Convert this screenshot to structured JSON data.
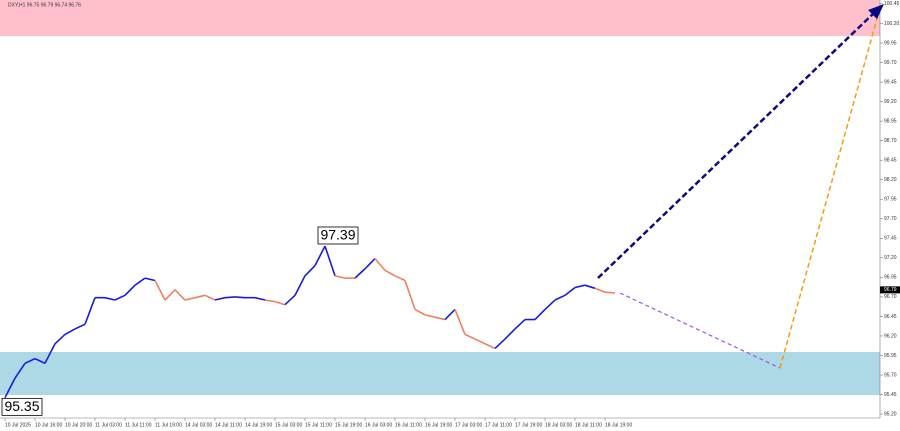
{
  "chart_data": {
    "type": "line",
    "title": "DXY,H1 96.75 96.79 96.74 96.76",
    "categories": [
      "10 Jul 2025",
      null,
      null,
      "10 Jul 16:00",
      null,
      null,
      "10 Jul 20:00",
      null,
      null,
      "11 Jul 03:00",
      null,
      null,
      "11 Jul 11:00",
      null,
      null,
      "11 Jul 19:00",
      null,
      null,
      "14 Jul 03:00",
      null,
      null,
      "14 Jul 11:00",
      null,
      null,
      "14 Jul 19:00",
      null,
      null,
      "15 Jul 03:00",
      null,
      null,
      "15 Jul 11:00",
      null,
      null,
      "15 Jul 19:00",
      null,
      null,
      "16 Jul 03:00",
      null,
      null,
      "16 Jul 11:00",
      null,
      null,
      "16 Jul 19:00",
      null,
      null,
      "17 Jul 03:00",
      null,
      null,
      "17 Jul 11:00",
      null,
      null,
      "17 Jul 19:00",
      null,
      null,
      "18 Jul 03:00",
      null,
      null,
      "18 Jul 11:00",
      null,
      null,
      "18 Jul 19:00",
      null
    ],
    "values": [
      95.41,
      95.66,
      95.85,
      95.91,
      95.85,
      96.1,
      96.22,
      96.29,
      96.35,
      96.69,
      96.69,
      96.66,
      96.72,
      96.85,
      96.94,
      96.91,
      96.66,
      96.79,
      96.66,
      96.69,
      96.72,
      96.66,
      96.69,
      96.7,
      96.69,
      96.69,
      96.66,
      96.64,
      96.6,
      96.72,
      96.97,
      97.1,
      97.35,
      96.97,
      96.94,
      96.94,
      97.06,
      97.19,
      97.04,
      96.97,
      96.91,
      96.54,
      96.47,
      96.44,
      96.41,
      96.54,
      96.22,
      96.16,
      96.1,
      96.04,
      96.16,
      96.29,
      96.41,
      96.41,
      96.54,
      96.66,
      96.72,
      96.82,
      96.85,
      96.81,
      96.76,
      96.75
    ],
    "point_colors": [
      "#1a1adb",
      "#1a1adb",
      "#1a1adb",
      "#1a1adb",
      "#1a1adb",
      "#1a1adb",
      "#1a1adb",
      "#1a1adb",
      "#1a1adb",
      "#1a1adb",
      "#1a1adb",
      "#1a1adb",
      "#1a1adb",
      "#1a1adb",
      "#1a1adb",
      "#1a1adb",
      "#ee8060",
      "#ee8060",
      "#ee8060",
      "#ee8060",
      "#ee8060",
      "#ee8060",
      "#1a1adb",
      "#1a1adb",
      "#1a1adb",
      "#1a1adb",
      "#1a1adb",
      "#ee8060",
      "#ee8060",
      "#1a1adb",
      "#1a1adb",
      "#1a1adb",
      "#1a1adb",
      "#1a1adb",
      "#ee8060",
      "#ee8060",
      "#1a1adb",
      "#1a1adb",
      "#ee8060",
      "#ee8060",
      "#ee8060",
      "#ee8060",
      "#ee8060",
      "#ee8060",
      "#ee8060",
      "#1a1adb",
      "#ee8060",
      "#ee8060",
      "#ee8060",
      "#ee8060",
      "#1a1adb",
      "#1a1adb",
      "#1a1adb",
      "#1a1adb",
      "#1a1adb",
      "#1a1adb",
      "#1a1adb",
      "#1a1adb",
      "#1a1adb",
      "#1a1adb",
      "#ee8060",
      "#ee8060"
    ],
    "ylim": [
      95.15,
      100.5
    ],
    "yticks": [
      {
        "value": 95.2,
        "label": "95.20"
      },
      95.45,
      {
        "value": 95.7,
        "label": "95.70"
      },
      95.95,
      {
        "value": 96.2,
        "label": "96.20"
      },
      96.45,
      {
        "value": 96.7,
        "label": "96.70"
      },
      96.95,
      {
        "value": 97.2,
        "label": "97.20"
      },
      97.45,
      {
        "value": 97.7,
        "label": "97.70"
      },
      97.95,
      {
        "value": 98.2,
        "label": "98.20"
      },
      98.45,
      {
        "value": 98.7,
        "label": "98.70"
      },
      98.95,
      {
        "value": 99.2,
        "label": "99.20"
      },
      99.45,
      {
        "value": 99.7,
        "label": "99.70"
      },
      99.95,
      {
        "value": 100.2,
        "label": "100.20"
      },
      100.45
    ],
    "annotations": [
      {
        "text": "97.39",
        "value": 97.39,
        "index": 31.5
      },
      {
        "text": "95.35",
        "value": 95.35,
        "index": 0
      }
    ],
    "current_price": {
      "value": 96.79,
      "label": "96.79"
    }
  }
}
